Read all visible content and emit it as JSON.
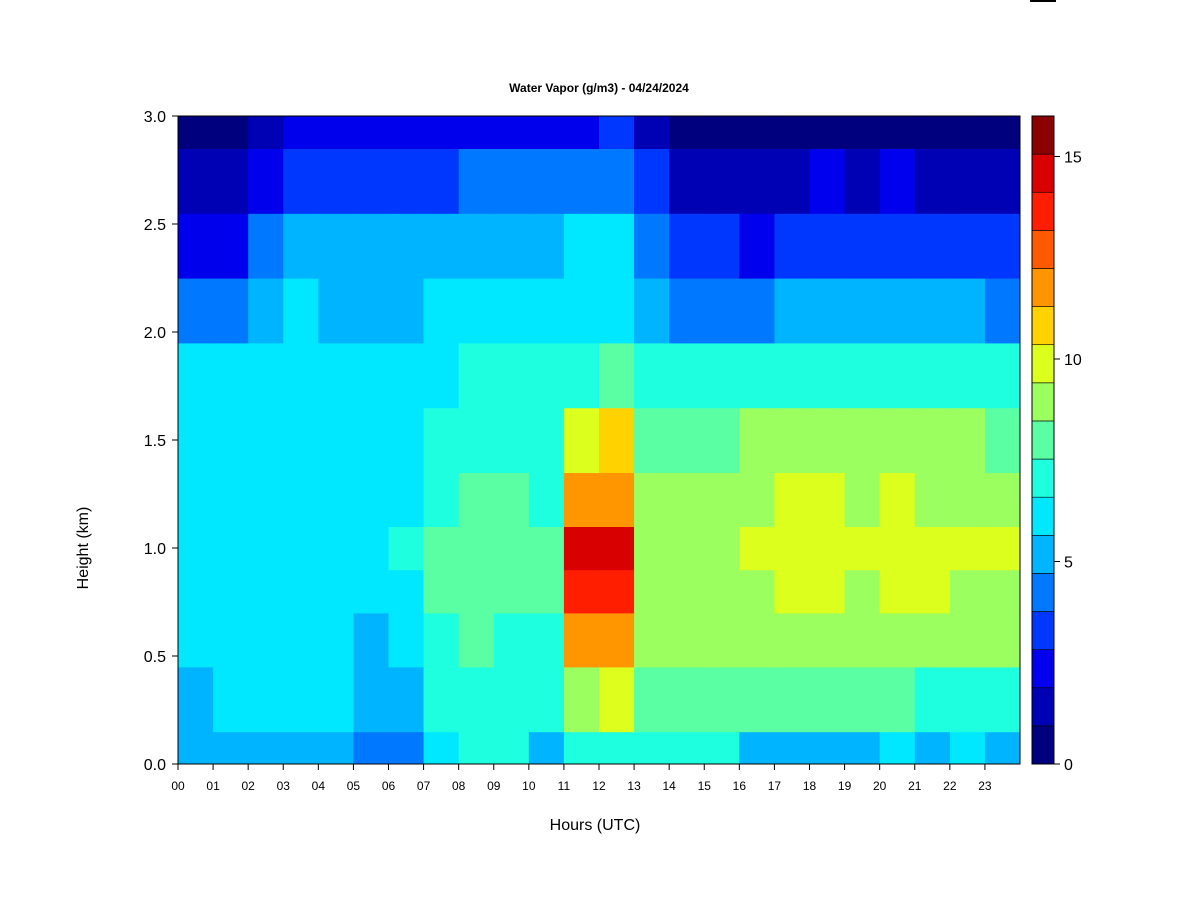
{
  "chart_data": {
    "type": "heatmap",
    "title": "Water Vapor (g/m3) - 04/24/2024",
    "xlabel": "Hours (UTC)",
    "ylabel": "Height (km)",
    "xlim": [
      0,
      24
    ],
    "ylim": [
      0,
      3
    ],
    "x_ticks": [
      "00",
      "01",
      "02",
      "03",
      "04",
      "05",
      "06",
      "07",
      "08",
      "09",
      "10",
      "11",
      "12",
      "13",
      "14",
      "15",
      "16",
      "17",
      "18",
      "19",
      "20",
      "21",
      "22",
      "23"
    ],
    "y_ticks": [
      "0.0",
      "0.5",
      "1.0",
      "1.5",
      "2.0",
      "2.5",
      "3.0"
    ],
    "colorbar": {
      "min": 0,
      "max": 16,
      "ticks": [
        {
          "value": 0,
          "label": "0"
        },
        {
          "value": 5,
          "label": "5"
        },
        {
          "value": 10,
          "label": "10"
        },
        {
          "value": 15,
          "label": "15"
        }
      ],
      "colors": [
        "#00007f",
        "#0000b4",
        "#0000ec",
        "#0037ff",
        "#0078ff",
        "#00b4ff",
        "#00e8ff",
        "#1effe0",
        "#5affa3",
        "#9bff5f",
        "#dcff1e",
        "#ffd200",
        "#ff9600",
        "#ff5a00",
        "#ff1e00",
        "#d80000",
        "#8a0000"
      ]
    },
    "heights_km": [
      0.0,
      0.3,
      0.6,
      0.8,
      1.0,
      1.2,
      1.5,
      1.8,
      2.1,
      2.4,
      2.7,
      3.0
    ],
    "hours_utc": [
      0,
      1,
      2,
      3,
      4,
      5,
      6,
      7,
      8,
      9,
      10,
      11,
      12,
      13,
      14,
      15,
      16,
      17,
      18,
      19,
      20,
      21,
      22,
      23
    ],
    "values": [
      [
        5.0,
        5.5,
        5.5,
        5.3,
        5.3,
        4.3,
        4.7,
        6.5,
        6.8,
        6.8,
        5.3,
        7.2,
        7.2,
        6.8,
        7.2,
        6.6,
        5.5,
        5.5,
        5.5,
        5.5,
        6.0,
        5.5,
        6.0,
        5.5
      ],
      [
        5.6,
        5.9,
        5.8,
        5.8,
        5.7,
        5.0,
        5.5,
        6.8,
        7.3,
        7.0,
        6.6,
        9.0,
        9.5,
        7.6,
        7.6,
        7.6,
        7.6,
        7.7,
        7.8,
        7.8,
        8.2,
        7.4,
        7.5,
        7.3
      ],
      [
        6.0,
        6.0,
        6.0,
        6.0,
        5.8,
        5.6,
        6.2,
        7.4,
        7.6,
        7.4,
        7.4,
        11.3,
        11.6,
        8.5,
        8.6,
        8.6,
        8.8,
        8.9,
        8.9,
        8.9,
        9.3,
        8.7,
        8.6,
        8.5
      ],
      [
        6.2,
        6.3,
        6.3,
        6.3,
        6.2,
        6.0,
        6.5,
        7.7,
        7.8,
        7.6,
        7.6,
        13.6,
        13.9,
        8.8,
        8.9,
        8.9,
        9.3,
        9.6,
        9.5,
        9.4,
        9.8,
        9.5,
        9.4,
        9.2
      ],
      [
        6.3,
        6.4,
        6.5,
        6.5,
        6.3,
        6.2,
        6.6,
        7.8,
        7.9,
        7.7,
        7.7,
        14.2,
        14.8,
        9.0,
        9.2,
        9.2,
        9.6,
        10.1,
        10.0,
        9.6,
        10.0,
        9.7,
        9.8,
        9.6
      ],
      [
        6.2,
        6.3,
        6.4,
        6.3,
        6.3,
        6.1,
        6.5,
        7.5,
        7.8,
        7.6,
        7.5,
        11.7,
        12.1,
        8.8,
        9.0,
        9.0,
        9.3,
        9.6,
        9.5,
        9.4,
        9.8,
        9.4,
        9.4,
        9.2
      ],
      [
        6.0,
        6.0,
        6.1,
        6.1,
        6.1,
        5.9,
        6.2,
        7.0,
        7.3,
        7.2,
        7.2,
        10.2,
        10.4,
        8.3,
        8.4,
        8.4,
        8.6,
        8.8,
        8.8,
        8.7,
        8.9,
        8.5,
        8.5,
        8.4
      ],
      [
        5.8,
        5.9,
        6.1,
        6.0,
        6.0,
        5.8,
        5.9,
        6.5,
        6.8,
        6.7,
        6.8,
        7.5,
        7.7,
        6.8,
        6.8,
        6.6,
        6.6,
        6.8,
        6.8,
        6.7,
        6.8,
        6.7,
        6.7,
        6.6
      ],
      [
        4.0,
        4.3,
        5.5,
        5.7,
        5.6,
        5.4,
        5.6,
        5.9,
        6.0,
        6.0,
        6.1,
        6.4,
        6.5,
        5.5,
        4.6,
        4.5,
        4.7,
        5.0,
        5.1,
        5.0,
        5.1,
        4.9,
        4.8,
        4.7
      ],
      [
        2.2,
        2.7,
        4.5,
        5.2,
        5.1,
        4.9,
        5.0,
        5.3,
        5.5,
        5.4,
        5.5,
        5.7,
        5.9,
        4.7,
        3.2,
        2.9,
        2.8,
        3.3,
        3.6,
        3.3,
        3.4,
        3.1,
        3.0,
        2.9
      ],
      [
        1.1,
        1.2,
        2.8,
        3.6,
        3.4,
        3.2,
        3.3,
        3.7,
        4.0,
        3.8,
        3.9,
        4.2,
        4.3,
        2.9,
        1.8,
        1.5,
        1.3,
        1.8,
        2.1,
        1.7,
        1.9,
        1.7,
        1.6,
        1.5
      ],
      [
        0.6,
        0.8,
        1.6,
        2.2,
        2.1,
        2.0,
        2.1,
        2.4,
        2.6,
        2.5,
        2.6,
        2.8,
        2.9,
        1.7,
        0.9,
        0.6,
        0.5,
        0.7,
        0.9,
        0.7,
        0.8,
        0.8,
        0.7,
        0.7
      ]
    ]
  }
}
